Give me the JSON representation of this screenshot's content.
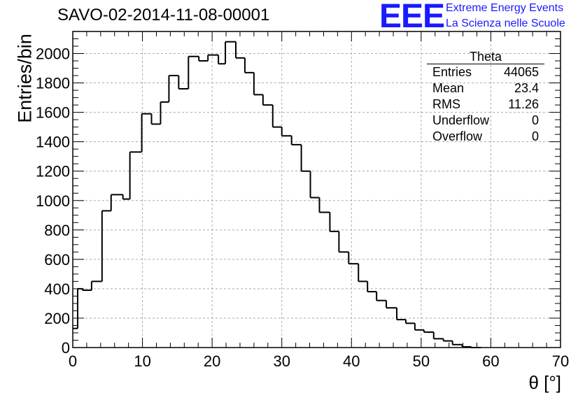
{
  "title": "SAVO-02-2014-11-08-00001",
  "logo": {
    "text": "EEE",
    "line1": "Extreme Energy Events",
    "line2": "La Scienza nelle Scuole",
    "color": "#1a1aff"
  },
  "stats_box": {
    "title": "Theta",
    "rows": [
      {
        "label": "Entries",
        "value": "44065"
      },
      {
        "label": "Mean",
        "value": "23.4"
      },
      {
        "label": "RMS",
        "value": "11.26"
      },
      {
        "label": "Underflow",
        "value": "0"
      },
      {
        "label": "Overflow",
        "value": "0"
      }
    ]
  },
  "chart_data": {
    "type": "bar",
    "histogram": true,
    "title": "SAVO-02-2014-11-08-00001",
    "xlabel": "θ [°]",
    "ylabel": "Entries/bin",
    "xlim": [
      0,
      70
    ],
    "ylim": [
      0,
      2150
    ],
    "xticks": [
      0,
      10,
      20,
      30,
      40,
      50,
      60,
      70
    ],
    "yticks": [
      0,
      200,
      400,
      600,
      800,
      1000,
      1200,
      1400,
      1600,
      1800,
      2000
    ],
    "grid": true,
    "bin_edges": [
      0,
      0.7,
      1.4,
      2.7,
      4.2,
      5.5,
      7.2,
      8.2,
      9.9,
      11.3,
      12.6,
      13.8,
      15.2,
      16.6,
      18.1,
      19.4,
      20.9,
      21.9,
      23.4,
      24.7,
      26.0,
      27.3,
      28.7,
      30.0,
      31.4,
      32.8,
      34.1,
      35.4,
      36.9,
      38.2,
      39.6,
      41.0,
      42.3,
      43.6,
      45.0,
      46.5,
      47.8,
      49.1,
      50.4,
      51.8,
      53.2,
      54.5,
      55.9,
      57.2,
      58.6
    ],
    "values": [
      130,
      400,
      390,
      450,
      930,
      1040,
      1010,
      1330,
      1590,
      1520,
      1670,
      1850,
      1760,
      1980,
      1950,
      1990,
      1930,
      2080,
      1970,
      1870,
      1720,
      1650,
      1500,
      1440,
      1380,
      1200,
      1020,
      920,
      790,
      650,
      570,
      450,
      380,
      320,
      270,
      190,
      165,
      120,
      105,
      60,
      45,
      20,
      5,
      0
    ]
  }
}
